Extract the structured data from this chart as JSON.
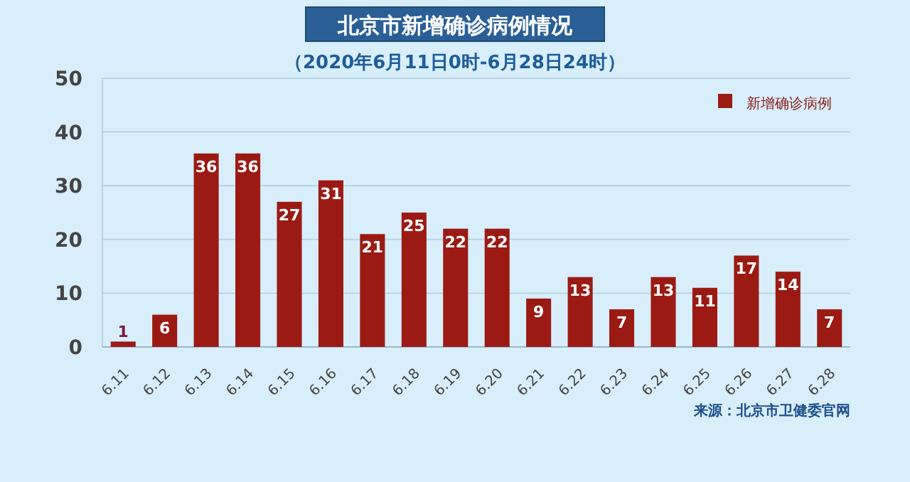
{
  "chart_data": {
    "type": "bar",
    "title": "北京市新增确诊病例情况",
    "subtitle": "（2020年6月11日0时-6月28日24时）",
    "categories": [
      "6.11",
      "6.12",
      "6.13",
      "6.14",
      "6.15",
      "6.16",
      "6.17",
      "6.18",
      "6.19",
      "6.20",
      "6.21",
      "6.22",
      "6.23",
      "6.24",
      "6.25",
      "6.26",
      "6.27",
      "6.28"
    ],
    "series": [
      {
        "name": "新增确诊病例",
        "color": "#9b1b14",
        "values": [
          1,
          6,
          36,
          36,
          27,
          31,
          21,
          25,
          22,
          22,
          9,
          13,
          7,
          13,
          11,
          17,
          14,
          7
        ]
      }
    ],
    "ylim": [
      0,
      50
    ],
    "yticks": [
      0,
      10,
      20,
      30,
      40,
      50
    ],
    "grid": "y",
    "legend": "top right",
    "data_labels": true,
    "annotations": [
      "来源：北京市卫健委官网"
    ]
  }
}
